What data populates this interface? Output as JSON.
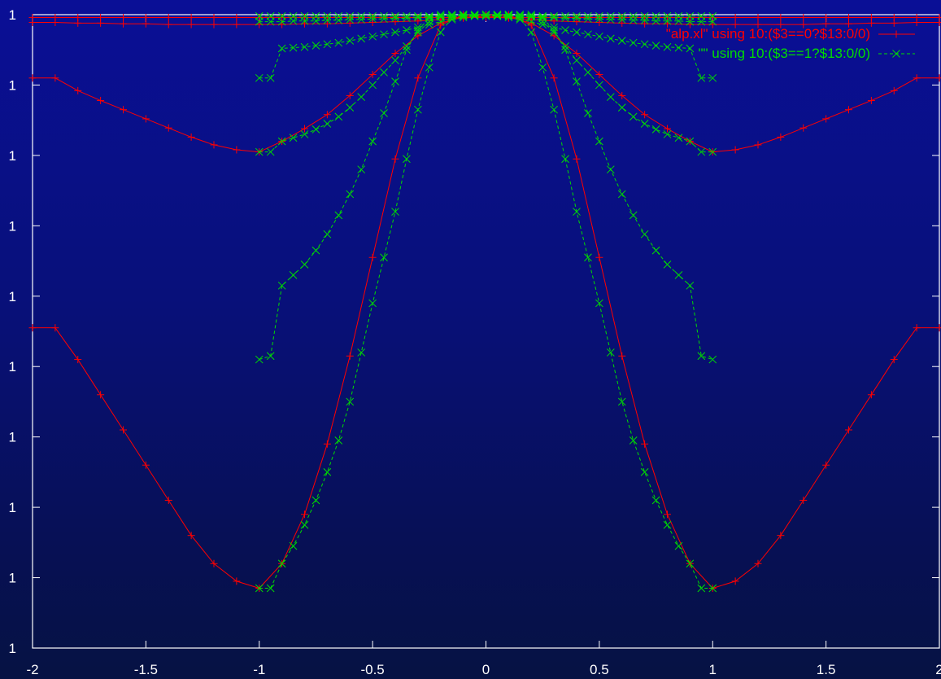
{
  "chart_data": {
    "type": "line",
    "title": "",
    "xlabel": "",
    "ylabel": "",
    "xlim": [
      -2,
      2
    ],
    "ylim": [
      0,
      9
    ],
    "xticks": [
      {
        "value": -2,
        "label": "-2"
      },
      {
        "value": -1.5,
        "label": "-1.5"
      },
      {
        "value": -1,
        "label": "-1"
      },
      {
        "value": -0.5,
        "label": "-0.5"
      },
      {
        "value": 0,
        "label": "0"
      },
      {
        "value": 0.5,
        "label": "0.5"
      },
      {
        "value": 1,
        "label": "1"
      },
      {
        "value": 1.5,
        "label": "1.5"
      },
      {
        "value": 2,
        "label": "2"
      }
    ],
    "yticks": [
      {
        "value": 0,
        "label": "1"
      },
      {
        "value": 1,
        "label": "1"
      },
      {
        "value": 2,
        "label": "1"
      },
      {
        "value": 3,
        "label": "1"
      },
      {
        "value": 4,
        "label": "1"
      },
      {
        "value": 5,
        "label": "1"
      },
      {
        "value": 6,
        "label": "1"
      },
      {
        "value": 7,
        "label": "1"
      },
      {
        "value": 8,
        "label": "1"
      },
      {
        "value": 9,
        "label": "1"
      }
    ],
    "legend_position": "top-right",
    "series": [
      {
        "name": "\"alp.xl\" using 10:($3==0?$13:0/0)",
        "color": "#ff0000",
        "line_style": "solid",
        "marker": "+",
        "lines": [
          {
            "x": [
              -2,
              -1.9,
              -1.8,
              -1.7,
              -1.6,
              -1.5,
              -1.4,
              -1.3,
              -1.2,
              -1.1,
              -1,
              -0.9,
              -0.8,
              -0.7,
              -0.6,
              -0.5,
              -0.4,
              -0.3,
              -0.2,
              -0.1,
              0,
              0.1,
              0.2,
              0.3,
              0.4,
              0.5,
              0.6,
              0.7,
              0.8,
              0.9,
              1,
              1.1,
              1.2,
              1.3,
              1.4,
              1.5,
              1.6,
              1.7,
              1.8,
              1.9,
              2
            ],
            "y": [
              8.96,
              8.96,
              8.96,
              8.96,
              8.96,
              8.96,
              8.96,
              8.96,
              8.96,
              8.96,
              8.96,
              8.96,
              8.96,
              8.96,
              8.96,
              8.96,
              8.96,
              8.96,
              8.96,
              8.96,
              8.96,
              8.96,
              8.96,
              8.96,
              8.96,
              8.96,
              8.96,
              8.96,
              8.96,
              8.96,
              8.96,
              8.96,
              8.96,
              8.96,
              8.96,
              8.96,
              8.96,
              8.96,
              8.96,
              8.96,
              8.96
            ]
          },
          {
            "x": [
              -2,
              -1.9,
              -1.8,
              -1.7,
              -1.6,
              -1.5,
              -1.4,
              -1.3,
              -1.2,
              -1.1,
              -1,
              -0.9,
              -0.8,
              -0.7,
              -0.6,
              -0.5,
              -0.4,
              -0.3,
              -0.2,
              -0.1,
              0,
              0.1,
              0.2,
              0.3,
              0.4,
              0.5,
              0.6,
              0.7,
              0.8,
              0.9,
              1,
              1.1,
              1.2,
              1.3,
              1.4,
              1.5,
              1.6,
              1.7,
              1.8,
              1.9,
              2
            ],
            "y": [
              8.89,
              8.89,
              8.88,
              8.88,
              8.87,
              8.87,
              8.86,
              8.86,
              8.86,
              8.86,
              8.86,
              8.86,
              8.87,
              8.87,
              8.88,
              8.89,
              8.9,
              8.91,
              8.93,
              8.95,
              8.98,
              8.95,
              8.93,
              8.91,
              8.9,
              8.89,
              8.88,
              8.87,
              8.87,
              8.86,
              8.86,
              8.86,
              8.86,
              8.86,
              8.86,
              8.87,
              8.87,
              8.88,
              8.88,
              8.89,
              8.89
            ]
          },
          {
            "x": [
              -2,
              -1.9,
              -1.8,
              -1.7,
              -1.6,
              -1.5,
              -1.4,
              -1.3,
              -1.2,
              -1.1,
              -1,
              -0.9,
              -0.8,
              -0.7,
              -0.6,
              -0.5,
              -0.4,
              -0.3,
              -0.2,
              -0.1,
              0,
              0.1,
              0.2,
              0.3,
              0.4,
              0.5,
              0.6,
              0.7,
              0.8,
              0.9,
              1,
              1.1,
              1.2,
              1.3,
              1.4,
              1.5,
              1.6,
              1.7,
              1.8,
              1.9,
              2
            ],
            "y": [
              8.1,
              8.1,
              7.92,
              7.78,
              7.65,
              7.52,
              7.39,
              7.26,
              7.15,
              7.08,
              7.05,
              7.2,
              7.38,
              7.58,
              7.85,
              8.15,
              8.45,
              8.7,
              8.88,
              8.97,
              9,
              8.97,
              8.88,
              8.7,
              8.45,
              8.15,
              7.85,
              7.58,
              7.38,
              7.2,
              7.05,
              7.08,
              7.15,
              7.26,
              7.39,
              7.52,
              7.65,
              7.78,
              7.92,
              8.1,
              8.1
            ]
          },
          {
            "x": [
              -2,
              -1.9,
              -1.8,
              -1.7,
              -1.6,
              -1.5,
              -1.4,
              -1.3,
              -1.2,
              -1.1,
              -1,
              -0.9,
              -0.8,
              -0.7,
              -0.6,
              -0.5,
              -0.4,
              -0.3,
              -0.2,
              -0.1,
              0,
              0.1,
              0.2,
              0.3,
              0.4,
              0.5,
              0.6,
              0.7,
              0.8,
              0.9,
              1,
              1.1,
              1.2,
              1.3,
              1.4,
              1.5,
              1.6,
              1.7,
              1.8,
              1.9,
              2
            ],
            "y": [
              4.55,
              4.55,
              4.1,
              3.6,
              3.1,
              2.6,
              2.1,
              1.6,
              1.2,
              0.95,
              0.85,
              1.2,
              1.9,
              2.9,
              4.15,
              5.55,
              6.95,
              8.1,
              8.85,
              9,
              9,
              9,
              8.85,
              8.1,
              6.95,
              5.55,
              4.15,
              2.9,
              1.9,
              1.2,
              0.85,
              0.95,
              1.2,
              1.6,
              2.1,
              2.6,
              3.1,
              3.6,
              4.1,
              4.55,
              4.55
            ]
          }
        ]
      },
      {
        "name": "\"\" using 10:($3==1?$13:0/0)",
        "color": "#00dd00",
        "line_style": "dashed",
        "marker": "x",
        "lines": [
          {
            "x": [
              -1,
              -0.95,
              -0.9,
              -0.85,
              -0.8,
              -0.75,
              -0.7,
              -0.65,
              -0.6,
              -0.55,
              -0.5,
              -0.45,
              -0.4,
              -0.35,
              -0.3,
              -0.25,
              -0.2,
              -0.15,
              -0.1,
              -0.05,
              0,
              0.05,
              0.1,
              0.15,
              0.2,
              0.25,
              0.3,
              0.35,
              0.4,
              0.45,
              0.5,
              0.55,
              0.6,
              0.65,
              0.7,
              0.75,
              0.8,
              0.85,
              0.9,
              0.95,
              1
            ],
            "y": [
              8.98,
              8.98,
              8.98,
              8.98,
              8.98,
              8.98,
              8.98,
              8.98,
              8.98,
              8.98,
              8.98,
              8.98,
              8.98,
              8.98,
              8.98,
              8.98,
              8.98,
              8.98,
              8.98,
              8.98,
              8.98,
              8.98,
              8.98,
              8.98,
              8.98,
              8.98,
              8.98,
              8.98,
              8.98,
              8.98,
              8.98,
              8.98,
              8.98,
              8.98,
              8.98,
              8.98,
              8.98,
              8.98,
              8.98,
              8.98,
              8.98
            ]
          },
          {
            "x": [
              -1,
              -0.95,
              -0.9,
              -0.85,
              -0.8,
              -0.75,
              -0.7,
              -0.65,
              -0.6,
              -0.55,
              -0.5,
              -0.45,
              -0.4,
              -0.35,
              -0.3,
              -0.25,
              -0.2,
              -0.15,
              -0.1,
              -0.05,
              0,
              0.05,
              0.1,
              0.15,
              0.2,
              0.25,
              0.3,
              0.35,
              0.4,
              0.45,
              0.5,
              0.55,
              0.6,
              0.65,
              0.7,
              0.75,
              0.8,
              0.85,
              0.9,
              0.95,
              1
            ],
            "y": [
              8.9,
              8.9,
              8.9,
              8.91,
              8.91,
              8.91,
              8.92,
              8.92,
              8.93,
              8.93,
              8.94,
              8.94,
              8.95,
              8.95,
              8.96,
              8.97,
              8.97,
              8.98,
              8.99,
              8.99,
              9,
              8.99,
              8.99,
              8.98,
              8.97,
              8.97,
              8.96,
              8.95,
              8.95,
              8.94,
              8.94,
              8.93,
              8.93,
              8.92,
              8.92,
              8.91,
              8.91,
              8.91,
              8.9,
              8.9,
              8.9
            ]
          },
          {
            "x": [
              -1,
              -0.95,
              -0.9,
              -0.85,
              -0.8,
              -0.75,
              -0.7,
              -0.65,
              -0.6,
              -0.55,
              -0.5,
              -0.45,
              -0.4,
              -0.35,
              -0.3,
              -0.25,
              -0.2,
              -0.15,
              -0.1,
              -0.05,
              0,
              0.05,
              0.1,
              0.15,
              0.2,
              0.25,
              0.3,
              0.35,
              0.4,
              0.45,
              0.5,
              0.55,
              0.6,
              0.65,
              0.7,
              0.75,
              0.8,
              0.85,
              0.9,
              0.95,
              1
            ],
            "y": [
              8.1,
              8.1,
              8.52,
              8.53,
              8.54,
              8.56,
              8.58,
              8.6,
              8.63,
              8.66,
              8.69,
              8.72,
              8.75,
              8.78,
              8.82,
              8.86,
              8.9,
              8.93,
              8.96,
              8.98,
              9,
              8.98,
              8.96,
              8.93,
              8.9,
              8.86,
              8.82,
              8.78,
              8.75,
              8.72,
              8.69,
              8.66,
              8.63,
              8.6,
              8.58,
              8.56,
              8.54,
              8.53,
              8.52,
              8.1,
              8.1
            ]
          },
          {
            "x": [
              -1,
              -0.95,
              -0.9,
              -0.85,
              -0.8,
              -0.75,
              -0.7,
              -0.65,
              -0.6,
              -0.55,
              -0.5,
              -0.45,
              -0.4,
              -0.35,
              -0.3,
              -0.25,
              -0.2,
              -0.15,
              -0.1,
              -0.05,
              0,
              0.05,
              0.1,
              0.15,
              0.2,
              0.25,
              0.3,
              0.35,
              0.4,
              0.45,
              0.5,
              0.55,
              0.6,
              0.65,
              0.7,
              0.75,
              0.8,
              0.85,
              0.9,
              0.95,
              1
            ],
            "y": [
              7.05,
              7.05,
              7.2,
              7.25,
              7.3,
              7.37,
              7.45,
              7.55,
              7.68,
              7.83,
              8,
              8.18,
              8.35,
              8.55,
              8.75,
              8.9,
              8.97,
              9,
              9,
              9,
              9,
              9,
              9,
              9,
              8.97,
              8.9,
              8.75,
              8.55,
              8.35,
              8.18,
              8,
              7.83,
              7.68,
              7.55,
              7.45,
              7.37,
              7.3,
              7.25,
              7.2,
              7.05,
              7.05
            ]
          },
          {
            "x": [
              -1,
              -0.95,
              -0.9,
              -0.85,
              -0.8,
              -0.75,
              -0.7,
              -0.65,
              -0.6,
              -0.55,
              -0.5,
              -0.45,
              -0.4,
              -0.35,
              -0.3,
              -0.25,
              -0.2,
              -0.15,
              -0.1,
              -0.05,
              0,
              0.05,
              0.1,
              0.15,
              0.2,
              0.25,
              0.3,
              0.35,
              0.4,
              0.45,
              0.5,
              0.55,
              0.6,
              0.65,
              0.7,
              0.75,
              0.8,
              0.85,
              0.9,
              0.95,
              1
            ],
            "y": [
              4.1,
              4.15,
              5.15,
              5.3,
              5.45,
              5.65,
              5.88,
              6.15,
              6.45,
              6.8,
              7.2,
              7.6,
              8.05,
              8.5,
              8.78,
              8.95,
              9,
              9,
              9,
              9,
              9,
              9,
              9,
              9,
              9,
              8.95,
              8.78,
              8.5,
              8.05,
              7.6,
              7.2,
              6.8,
              6.45,
              6.15,
              5.88,
              5.65,
              5.45,
              5.3,
              5.15,
              4.15,
              4.1
            ]
          },
          {
            "x": [
              -1,
              -0.95,
              -0.9,
              -0.85,
              -0.8,
              -0.75,
              -0.7,
              -0.65,
              -0.6,
              -0.55,
              -0.5,
              -0.45,
              -0.4,
              -0.35,
              -0.3,
              -0.25,
              -0.2,
              -0.15,
              -0.1,
              -0.05,
              0,
              0.05,
              0.1,
              0.15,
              0.2,
              0.25,
              0.3,
              0.35,
              0.4,
              0.45,
              0.5,
              0.55,
              0.6,
              0.65,
              0.7,
              0.75,
              0.8,
              0.85,
              0.9,
              0.95,
              1
            ],
            "y": [
              0.85,
              0.85,
              1.2,
              1.45,
              1.75,
              2.1,
              2.5,
              2.95,
              3.5,
              4.2,
              4.9,
              5.55,
              6.2,
              6.95,
              7.65,
              8.25,
              8.75,
              8.95,
              9,
              9,
              9,
              9,
              9,
              8.95,
              8.75,
              8.25,
              7.65,
              6.95,
              6.2,
              5.55,
              4.9,
              4.2,
              3.5,
              2.95,
              2.5,
              2.1,
              1.75,
              1.45,
              1.2,
              0.85,
              0.85
            ]
          }
        ]
      }
    ]
  }
}
